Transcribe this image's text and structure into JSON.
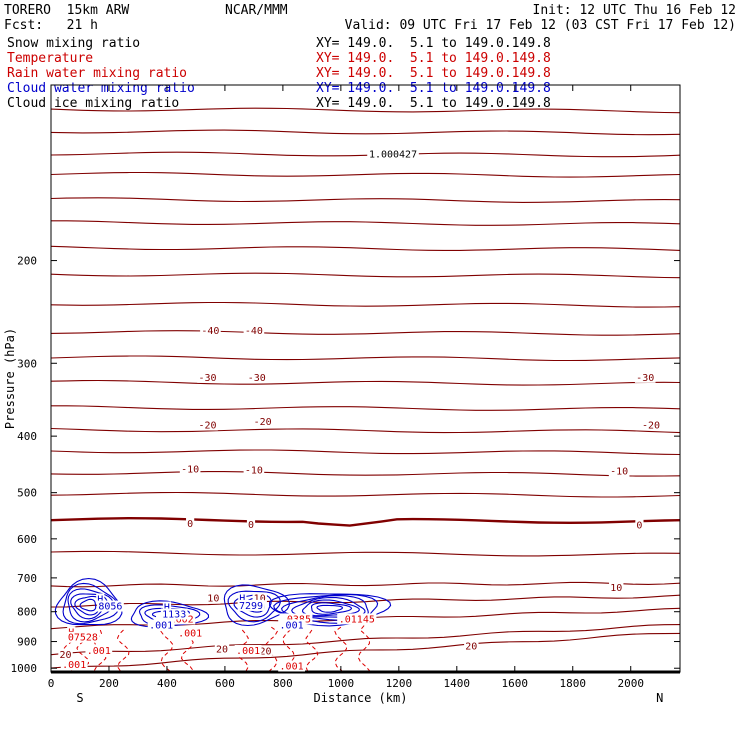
{
  "header": {
    "model": "TORERO  15km ARW",
    "center": "NCAR/MMM",
    "init": "Init: 12 UTC Thu 16 Feb 12",
    "fcst": "Fcst:   21 h",
    "valid": "Valid: 09 UTC Fri 17 Feb 12 (03 CST Fri 17 Feb 12)"
  },
  "legend": [
    {
      "label": "Snow mixing ratio",
      "xy": "XY= 149.0.  5.1 to 149.0.149.8",
      "color": "#000000"
    },
    {
      "label": "Temperature",
      "xy": "XY= 149.0.  5.1 to 149.0.149.8",
      "color": "#cc0000"
    },
    {
      "label": "Rain water mixing ratio",
      "xy": "XY= 149.0.  5.1 to 149.0.149.8",
      "color": "#cc0000"
    },
    {
      "label": "Cloud water mixing ratio",
      "xy": "XY= 149.0.  5.1 to 149.0.149.8",
      "color": "#0000cc"
    },
    {
      "label": "Cloud ice mixing ratio",
      "xy": "XY= 149.0.  5.1 to 149.0.149.8",
      "color": "#000000"
    }
  ],
  "chart_data": {
    "type": "contour",
    "xlabel": "Distance (km)",
    "ylabel": "Pressure (hPa)",
    "xlim": [
      0,
      2170
    ],
    "ylim": [
      1015,
      100
    ],
    "xticks": [
      0,
      200,
      400,
      600,
      800,
      1000,
      1200,
      1400,
      1600,
      1800,
      2000
    ],
    "yticks": [
      200,
      300,
      400,
      500,
      600,
      700,
      800,
      900,
      1000
    ],
    "end_labels": {
      "left": "S",
      "right": "N"
    },
    "colors": {
      "temperature": "#800000",
      "rain": "#dd0000",
      "cloud_water": "#0000cc",
      "cloud_ice": "#000000"
    },
    "temperature_labels": [
      {
        "text": "-40",
        "x": 550,
        "p": 265
      },
      {
        "text": "-40",
        "x": 700,
        "p": 265
      },
      {
        "text": "-30",
        "x": 540,
        "p": 319
      },
      {
        "text": "-30",
        "x": 710,
        "p": 319
      },
      {
        "text": "-30",
        "x": 2050,
        "p": 319
      },
      {
        "text": "-20",
        "x": 540,
        "p": 385
      },
      {
        "text": "-20",
        "x": 730,
        "p": 380
      },
      {
        "text": "-20",
        "x": 2070,
        "p": 385
      },
      {
        "text": "-10",
        "x": 480,
        "p": 458
      },
      {
        "text": "-10",
        "x": 700,
        "p": 460
      },
      {
        "text": "-10",
        "x": 1960,
        "p": 462
      },
      {
        "text": "0",
        "x": 480,
        "p": 568
      },
      {
        "text": "0",
        "x": 690,
        "p": 570
      },
      {
        "text": "0",
        "x": 2030,
        "p": 571
      },
      {
        "text": "10",
        "x": 560,
        "p": 763
      },
      {
        "text": "10",
        "x": 720,
        "p": 763
      },
      {
        "text": "10",
        "x": 1950,
        "p": 731
      },
      {
        "text": "20",
        "x": 50,
        "p": 952
      },
      {
        "text": "20",
        "x": 590,
        "p": 932
      },
      {
        "text": "20",
        "x": 740,
        "p": 940
      },
      {
        "text": "20",
        "x": 1450,
        "p": 922
      }
    ],
    "temperature_isotherms_p_at_left": [
      110,
      120,
      131,
      142,
      157,
      172,
      190,
      211,
      237,
      265,
      293,
      323,
      357,
      390,
      424,
      462,
      502,
      556,
      634,
      722,
      782,
      852,
      948,
      1003
    ],
    "rain_labels": [
      {
        "text": "H",
        "x": 70,
        "p": 872
      },
      {
        "text": "07528",
        "x": 110,
        "p": 890
      },
      {
        "text": ".001",
        "x": 165,
        "p": 938
      },
      {
        "text": ".001",
        "x": 80,
        "p": 992
      },
      {
        "text": ".01602",
        "x": 430,
        "p": 828
      },
      {
        "text": ".001",
        "x": 480,
        "p": 875
      },
      {
        "text": ".001",
        "x": 680,
        "p": 938
      },
      {
        "text": ".0385",
        "x": 845,
        "p": 828
      },
      {
        "text": ".001",
        "x": 830,
        "p": 997
      },
      {
        "text": ".01145",
        "x": 1055,
        "p": 828
      },
      {
        "text": "H",
        "x": 400,
        "p": 809
      }
    ],
    "cloud_labels": [
      {
        "text": "H",
        "x": 170,
        "p": 765
      },
      {
        "text": "8056",
        "x": 205,
        "p": 787
      },
      {
        "text": "H",
        "x": 400,
        "p": 790
      },
      {
        "text": "1133",
        "x": 425,
        "p": 812
      },
      {
        "text": "H",
        "x": 660,
        "p": 762
      },
      {
        "text": "7299",
        "x": 690,
        "p": 785
      },
      {
        "text": ".001",
        "x": 380,
        "p": 848
      },
      {
        "text": ".001",
        "x": 830,
        "p": 848
      }
    ],
    "ice_labels": [
      {
        "text": "1.000427",
        "x": 1180,
        "p": 132
      }
    ]
  }
}
